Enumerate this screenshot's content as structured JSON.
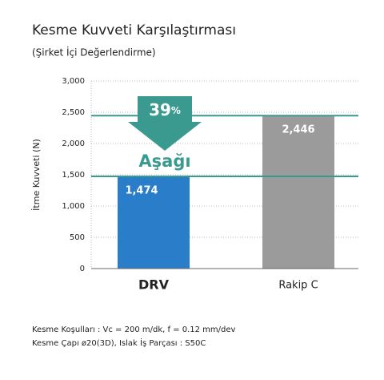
{
  "chart_data": {
    "type": "bar",
    "title": "Kesme Kuvveti Karşılaştırması",
    "subtitle": "(Şirket İçi Değerlendirme)",
    "y_label": "İtme Kuvveti (N)",
    "categories": [
      "DRV",
      "Rakip C"
    ],
    "values": [
      1474,
      2446
    ],
    "value_labels": [
      "1,474",
      "2,446"
    ],
    "colors": [
      "#2a7dc8",
      "#9b9b9b"
    ],
    "reference_line_color": "#3a9a8f",
    "ylim": [
      0,
      3000
    ],
    "yticks": [
      0,
      500,
      {
        "value": 1000,
        "label": "1,000"
      },
      {
        "value": 1500,
        "label": "1,500"
      },
      {
        "value": 2000,
        "label": "2,000"
      },
      {
        "value": 2500,
        "label": "2,500"
      },
      {
        "value": 3000,
        "label": "3,000"
      }
    ],
    "grid": true,
    "annotation_number": "39",
    "annotation_unit": "%",
    "annotation_text": "Aşağı",
    "footnotes": [
      "Kesme Koşulları : Vc = 200 m/dk, f = 0.12 mm/dev",
      "Kesme Çapı ø20(3D), Islak İş Parçası : S50C"
    ]
  }
}
